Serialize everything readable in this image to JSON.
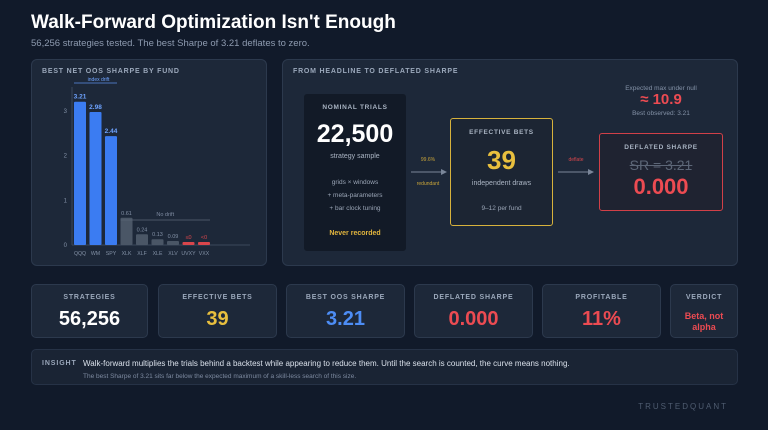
{
  "header": {
    "title": "Walk-Forward Optimization Isn't Enough",
    "subtitle": "56,256 strategies tested. The best Sharpe of 3.21 deflates to zero."
  },
  "chart_data": {
    "type": "bar",
    "title": "BEST NET OOS SHARPE BY FUND",
    "categories": [
      "QQQ",
      "WM",
      "SPY",
      "XLK",
      "XLF",
      "XLE",
      "XLV",
      "UVXY",
      "VXX"
    ],
    "values": [
      3.21,
      2.98,
      2.44,
      0.61,
      0.24,
      0.13,
      0.09,
      -0.02,
      -0.02
    ],
    "labels": [
      "3.21",
      "2.98",
      "2.44",
      "0.61",
      "0.24",
      "0.13",
      "0.09",
      "≤0",
      "<0"
    ],
    "yticks": [
      0,
      1,
      2,
      3
    ],
    "ylim": [
      0,
      3.45
    ],
    "group_labels": {
      "index_drift": "index drift",
      "no_drift": "No drift"
    },
    "colors": {
      "drift": "#3b7cf2",
      "flat": "#4a5666",
      "negative": "#d9464c"
    }
  },
  "flow": {
    "title": "FROM HEADLINE TO DEFLATED SHARPE",
    "nominal": {
      "label": "NOMINAL TRIALS",
      "value": "22,500",
      "caption": "strategy sample",
      "items": [
        "grids × windows",
        "+ meta-parameters",
        "+ bar clock tuning"
      ],
      "footer": "Never recorded"
    },
    "arrow1": {
      "top": "99.6%",
      "bottom": "redundant"
    },
    "effective": {
      "label": "EFFECTIVE BETS",
      "value": "39",
      "caption": "independent draws",
      "footer": "9–12 per fund"
    },
    "arrow2": {
      "top": "deflate"
    },
    "null_note": {
      "label": "Expected max under null",
      "value": "≈ 10.9",
      "observed": "Best observed: 3.21"
    },
    "deflated": {
      "label": "DEFLATED SHARPE",
      "struck": "SR = 3.21",
      "value": "0.000"
    }
  },
  "cards": [
    {
      "label": "STRATEGIES",
      "value": "56,256",
      "color": "#ffffff"
    },
    {
      "label": "EFFECTIVE BETS",
      "value": "39",
      "color": "#e8bf3e"
    },
    {
      "label": "BEST OOS SHARPE",
      "value": "3.21",
      "color": "#4d8df5"
    },
    {
      "label": "DEFLATED SHARPE",
      "value": "0.000",
      "color": "#ec4b52"
    },
    {
      "label": "PROFITABLE",
      "value": "11%",
      "color": "#ec4b52"
    },
    {
      "label": "VERDICT",
      "value": "Beta, not alpha",
      "color": "#ec4b52"
    }
  ],
  "insight": {
    "tag": "INSIGHT",
    "main": "Walk-forward multiplies the trials behind a backtest while appearing to reduce them. Until the search is counted, the curve means nothing.",
    "sub": "The best Sharpe of 3.21 sits far below the expected maximum of a skill-less search of this size."
  },
  "brand": "TRUSTEDQUANT"
}
